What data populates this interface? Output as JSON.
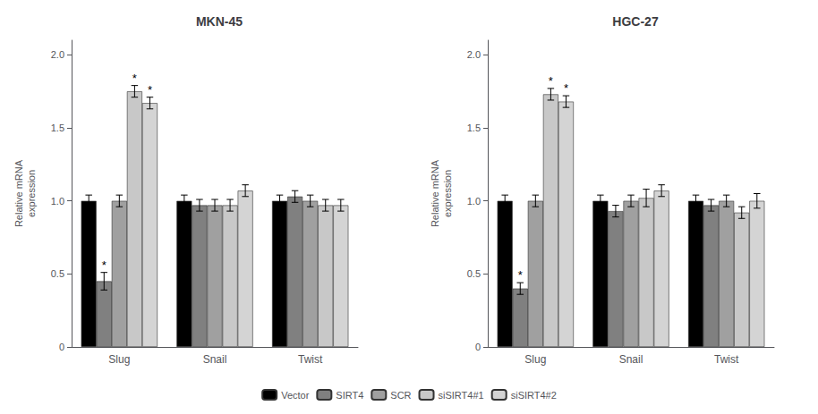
{
  "chart_data": [
    {
      "type": "bar",
      "title": "MKN-45",
      "ylabel": "Relative mRNA\nexpression",
      "categories": [
        "Slug",
        "Snail",
        "Twist"
      ],
      "series": [
        {
          "name": "Vector",
          "color": "#000000",
          "values": [
            1.0,
            1.0,
            1.0
          ],
          "errors": [
            0.04,
            0.04,
            0.04
          ]
        },
        {
          "name": "SIRT4",
          "color": "#808080",
          "values": [
            0.45,
            0.97,
            1.03
          ],
          "errors": [
            0.06,
            0.04,
            0.04
          ]
        },
        {
          "name": "SCR",
          "color": "#a0a0a0",
          "values": [
            1.0,
            0.97,
            1.0
          ],
          "errors": [
            0.04,
            0.04,
            0.04
          ]
        },
        {
          "name": "siSIRT4#1",
          "color": "#c8c8c8",
          "values": [
            1.75,
            0.97,
            0.97
          ],
          "errors": [
            0.04,
            0.04,
            0.04
          ]
        },
        {
          "name": "siSIRT4#2",
          "color": "#d4d4d4",
          "values": [
            1.67,
            1.07,
            0.97
          ],
          "errors": [
            0.04,
            0.04,
            0.04
          ]
        }
      ],
      "annotations": [
        {
          "text": "*",
          "series": "SIRT4",
          "category": "Slug"
        },
        {
          "text": "*",
          "series": "siSIRT4#1",
          "category": "Slug"
        },
        {
          "text": "*",
          "series": "siSIRT4#2",
          "category": "Slug"
        }
      ],
      "ylim": [
        0,
        2.1
      ],
      "yticks": [
        0,
        0.5,
        {
          "value": 1.0,
          "label": "1.0"
        },
        1.5,
        {
          "value": 2.0,
          "label": "2.0"
        }
      ],
      "grid": false,
      "legend": "bottom"
    },
    {
      "type": "bar",
      "title": "HGC-27",
      "ylabel": "Relative mRNA\nexpression",
      "categories": [
        "Slug",
        "Snail",
        "Twist"
      ],
      "series": [
        {
          "name": "Vector",
          "color": "#000000",
          "values": [
            1.0,
            1.0,
            1.0
          ],
          "errors": [
            0.04,
            0.04,
            0.04
          ]
        },
        {
          "name": "SIRT4",
          "color": "#808080",
          "values": [
            0.4,
            0.93,
            0.97
          ],
          "errors": [
            0.04,
            0.04,
            0.04
          ]
        },
        {
          "name": "SCR",
          "color": "#a0a0a0",
          "values": [
            1.0,
            1.0,
            1.0
          ],
          "errors": [
            0.04,
            0.04,
            0.04
          ]
        },
        {
          "name": "siSIRT4#1",
          "color": "#c8c8c8",
          "values": [
            1.73,
            1.02,
            0.92
          ],
          "errors": [
            0.04,
            0.06,
            0.04
          ]
        },
        {
          "name": "siSIRT4#2",
          "color": "#d4d4d4",
          "values": [
            1.68,
            1.07,
            1.0
          ],
          "errors": [
            0.04,
            0.04,
            0.05
          ]
        }
      ],
      "annotations": [
        {
          "text": "*",
          "series": "SIRT4",
          "category": "Slug"
        },
        {
          "text": "*",
          "series": "siSIRT4#1",
          "category": "Slug"
        },
        {
          "text": "*",
          "series": "siSIRT4#2",
          "category": "Slug"
        }
      ],
      "ylim": [
        0,
        2.1
      ],
      "yticks": [
        0,
        0.5,
        {
          "value": 1.0,
          "label": "1.0"
        },
        1.5,
        {
          "value": 2.0,
          "label": "2.0"
        }
      ],
      "grid": false
    }
  ]
}
